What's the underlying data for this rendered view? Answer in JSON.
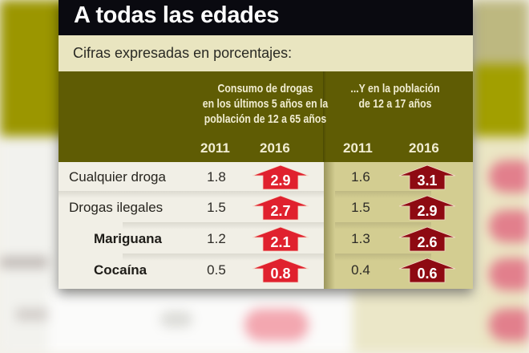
{
  "title": "A todas las edades",
  "subtitle": "Cifras expresadas en porcentajes:",
  "colors": {
    "title_bg": "#0a0a10",
    "subtitle_bg": "#e9e5c0",
    "header_bg": "#5f5c04",
    "left_body_bg": "#f1efe6",
    "right_body_bg": "#d3cd91",
    "arrow_left": "#e0212e",
    "arrow_right": "#8e0a12"
  },
  "groups": [
    {
      "title_lines": [
        "Consumo de drogas",
        "en los últimos 5 años en la",
        "población de 12 a 65 años"
      ],
      "years": [
        "2011",
        "2016"
      ]
    },
    {
      "title_lines": [
        "...Y en la población",
        "de 12 a 17 años"
      ],
      "years": [
        "2011",
        "2016"
      ]
    }
  ],
  "rows": [
    {
      "label": "Cualquier droga",
      "indent": false,
      "values": [
        "1.8",
        "2.9",
        "1.6",
        "3.1"
      ],
      "arrow_icon": "up-arrow-icon"
    },
    {
      "label": "Drogas ilegales",
      "indent": false,
      "values": [
        "1.5",
        "2.7",
        "1.5",
        "2.9"
      ],
      "arrow_icon": "up-arrow-icon"
    },
    {
      "label": "Mariguana",
      "indent": true,
      "values": [
        "1.2",
        "2.1",
        "1.3",
        "2.6"
      ],
      "arrow_icon": "up-arrow-icon"
    },
    {
      "label": "Cocaína",
      "indent": true,
      "values": [
        "0.5",
        "0.8",
        "0.4",
        "0.6"
      ],
      "arrow_icon": "up-arrow-icon"
    }
  ]
}
